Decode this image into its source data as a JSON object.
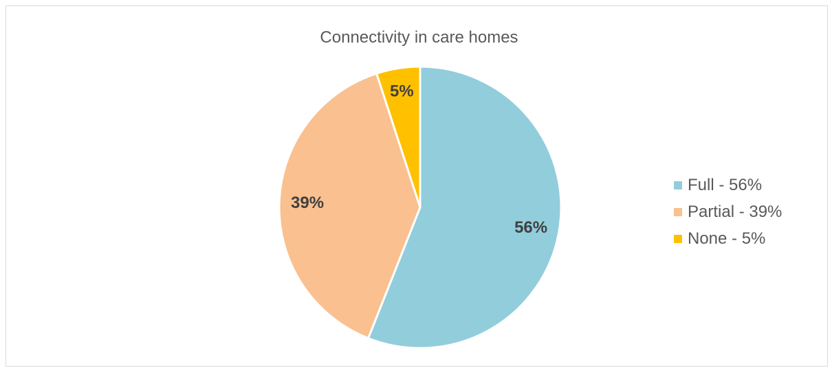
{
  "chart_data": {
    "type": "pie",
    "title": "Connectivity in care homes",
    "categories": [
      "Full - 56%",
      "Partial - 39%",
      "None - 5%"
    ],
    "values": [
      56,
      39,
      5
    ],
    "data_labels": [
      "56%",
      "39%",
      "5%"
    ],
    "colors": [
      "#92CDDC",
      "#FAC090",
      "#FFC000"
    ],
    "legend_position": "right"
  }
}
